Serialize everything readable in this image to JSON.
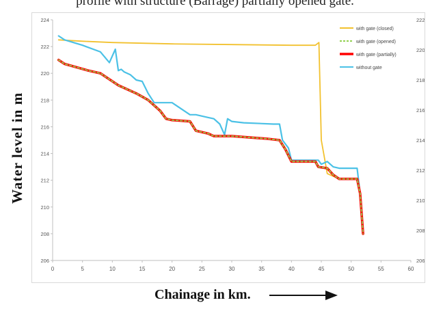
{
  "caption": "profile with structure (Barrage) partially opened gate.",
  "chart_data": {
    "type": "line",
    "xlabel": "Chainage in km.",
    "ylabel": "Water level in m",
    "xlim": [
      0,
      60
    ],
    "ylim": [
      206,
      224
    ],
    "ylim_right": [
      206,
      222
    ],
    "xticks": [
      "0",
      "5",
      "10",
      "15",
      "20",
      "25",
      "30",
      "35",
      "40",
      "45",
      "50",
      "55",
      "60"
    ],
    "yticks": [
      "206",
      "208",
      "210",
      "212",
      "214",
      "216",
      "218",
      "220",
      "222",
      "224"
    ],
    "yticks_right": [
      "206",
      "208",
      "210",
      "212",
      "214",
      "216",
      "218",
      "220",
      "222"
    ],
    "grid": false,
    "legend_position": "top-right",
    "series": [
      {
        "name": "with gate (closed)",
        "color": "#f2c12e",
        "x": [
          1,
          5,
          10,
          20,
          30,
          40,
          44,
          44.6,
          45,
          46,
          48,
          51,
          51.5,
          52
        ],
        "y": [
          222.5,
          222.4,
          222.3,
          222.2,
          222.15,
          222.1,
          222.1,
          222.3,
          215,
          212.5,
          212.1,
          212.1,
          211,
          208
        ]
      },
      {
        "name": "with gate (opened)",
        "color": "#92d050",
        "x": [
          1,
          2,
          6,
          8,
          11,
          14,
          16,
          18,
          19,
          20,
          23,
          24,
          26,
          27,
          30,
          36,
          38,
          39,
          40,
          41,
          44,
          44.5,
          46,
          47,
          48,
          51,
          51.5,
          52
        ],
        "y": [
          221,
          220.7,
          220.2,
          220,
          219.1,
          218.5,
          218,
          217.2,
          216.6,
          216.5,
          216.4,
          215.7,
          215.5,
          215.3,
          215.3,
          215.1,
          215,
          214.3,
          213.4,
          213.4,
          213.4,
          213,
          212.9,
          212.4,
          212.1,
          212.1,
          211,
          208
        ]
      },
      {
        "name": "with gate (partially)",
        "color": "#ff0000",
        "x": [
          1,
          2,
          6,
          8,
          11,
          14,
          16,
          18,
          19,
          20,
          23,
          24,
          26,
          27,
          30,
          36,
          38,
          39,
          40,
          41,
          44,
          44.5,
          46,
          47,
          48,
          51,
          51.5,
          52
        ],
        "y": [
          221,
          220.7,
          220.2,
          220,
          219.1,
          218.5,
          218,
          217.2,
          216.6,
          216.5,
          216.4,
          215.7,
          215.5,
          215.3,
          215.3,
          215.1,
          215,
          214.3,
          213.4,
          213.4,
          213.4,
          213,
          212.9,
          212.4,
          212.1,
          212.1,
          211,
          208
        ]
      },
      {
        "name": "without gate",
        "color": "#4bc1e6",
        "x": [
          1,
          2,
          5,
          8,
          9.5,
          10.5,
          11,
          11.5,
          12,
          13,
          14,
          15,
          16,
          17,
          19,
          20,
          23,
          24,
          26,
          27,
          28,
          28.8,
          29.3,
          30,
          32,
          37,
          38,
          38.5,
          39.5,
          40,
          44,
          44.5,
          45,
          46,
          47,
          48,
          50,
          51,
          51.5,
          52
        ],
        "y": [
          222.8,
          222.5,
          222.1,
          221.6,
          220.8,
          221.8,
          220.2,
          220.3,
          220.1,
          219.9,
          219.5,
          219.4,
          218.5,
          217.8,
          217.8,
          217.8,
          216.9,
          216.9,
          216.7,
          216.6,
          216.2,
          215.4,
          216.6,
          216.4,
          216.3,
          216.2,
          216.2,
          215,
          214.4,
          213.5,
          213.5,
          213.5,
          213.2,
          213.4,
          213,
          212.9,
          212.9,
          212.9,
          211,
          208
        ]
      }
    ]
  }
}
